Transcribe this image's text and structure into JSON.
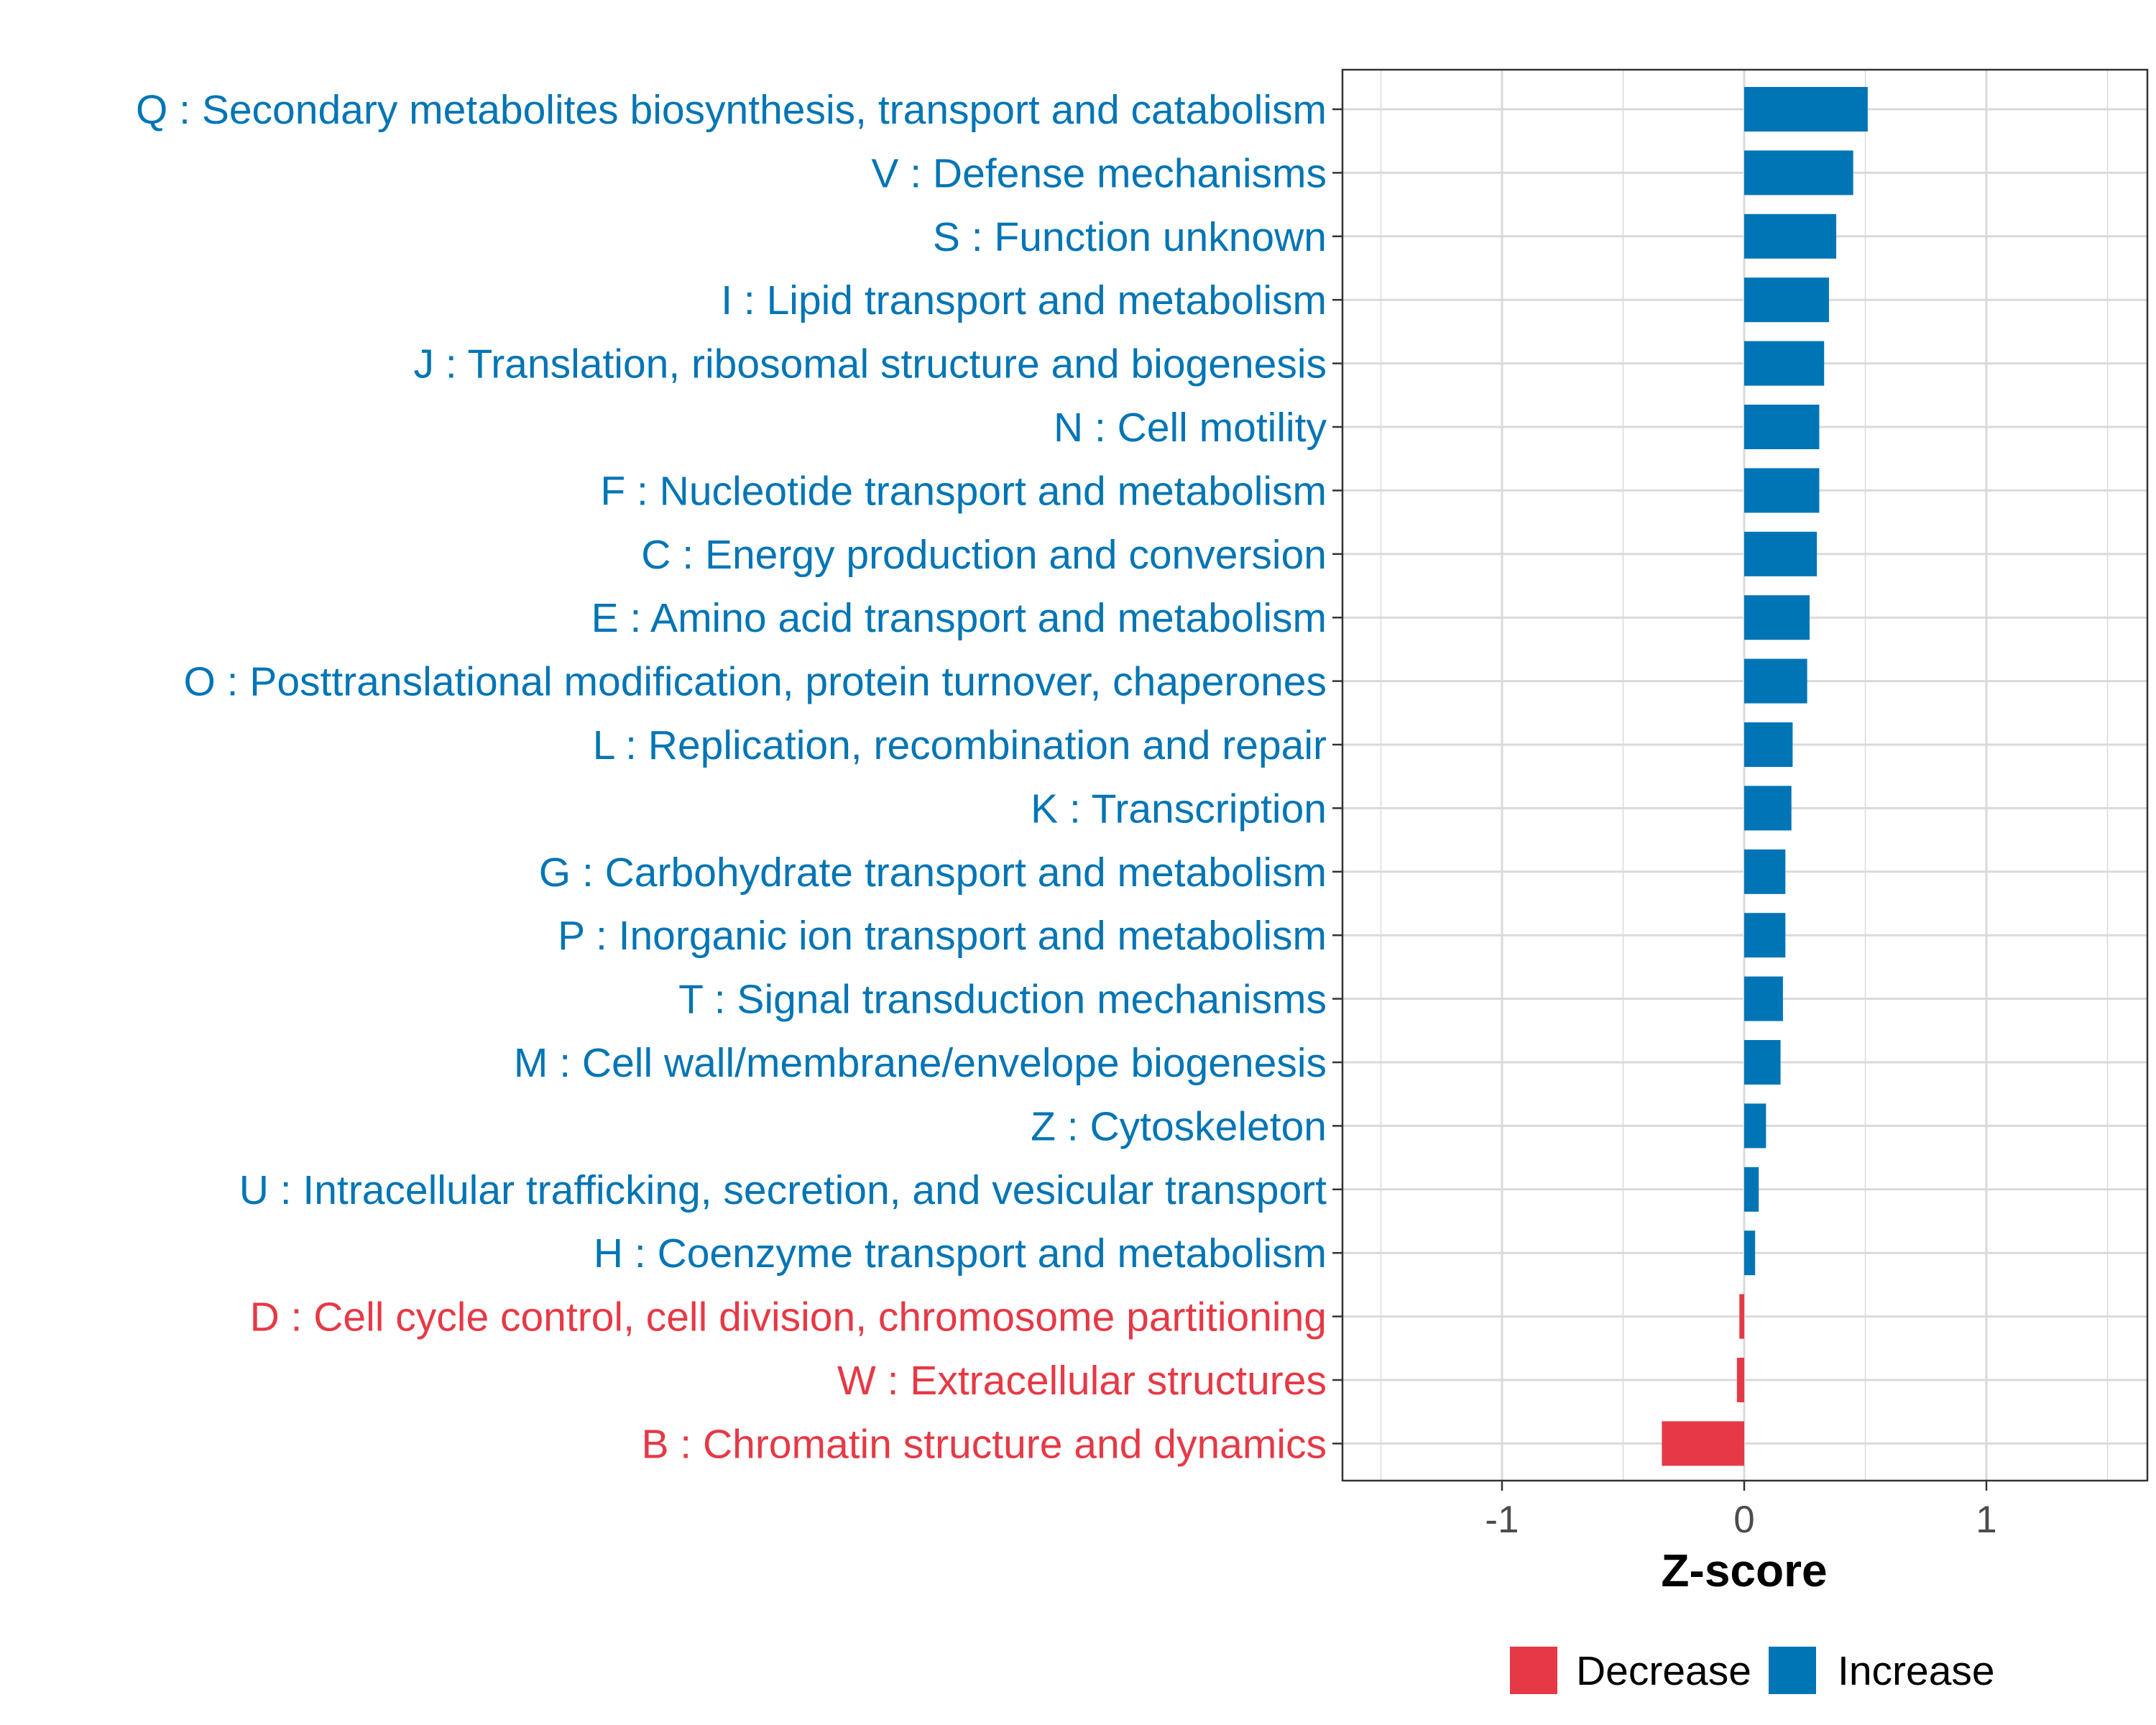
{
  "colors": {
    "increase": "#0075B5",
    "decrease": "#E63946",
    "grid": "#DADADA",
    "panel_border": "#333333",
    "tick_text": "#4D4D4D"
  },
  "chart_data": {
    "type": "bar",
    "orientation": "horizontal",
    "title": "",
    "xlabel": "Z-score",
    "ylabel": "",
    "xlim": [
      -1.66,
      1.66
    ],
    "xticks": [
      {
        "value": -1,
        "label": "-1"
      },
      {
        "value": 0,
        "label": "0"
      },
      {
        "value": 1,
        "label": "1"
      }
    ],
    "grid": true,
    "legend": {
      "position": "bottom",
      "entries": [
        {
          "key": "decrease",
          "label": "Decrease"
        },
        {
          "key": "increase",
          "label": "Increase"
        }
      ]
    },
    "categories": [
      {
        "label": "Q : Secondary metabolites biosynthesis, transport and catabolism",
        "value": 0.51,
        "direction": "increase"
      },
      {
        "label": "V : Defense mechanisms",
        "value": 0.45,
        "direction": "increase"
      },
      {
        "label": "S : Function unknown",
        "value": 0.38,
        "direction": "increase"
      },
      {
        "label": "I : Lipid transport and metabolism",
        "value": 0.35,
        "direction": "increase"
      },
      {
        "label": "J : Translation, ribosomal structure and biogenesis",
        "value": 0.33,
        "direction": "increase"
      },
      {
        "label": "N : Cell motility",
        "value": 0.31,
        "direction": "increase"
      },
      {
        "label": "F : Nucleotide transport and metabolism",
        "value": 0.31,
        "direction": "increase"
      },
      {
        "label": "C : Energy production and conversion",
        "value": 0.3,
        "direction": "increase"
      },
      {
        "label": "E : Amino acid transport and metabolism",
        "value": 0.27,
        "direction": "increase"
      },
      {
        "label": "O : Posttranslational modification, protein turnover, chaperones",
        "value": 0.26,
        "direction": "increase"
      },
      {
        "label": "L : Replication, recombination and repair",
        "value": 0.2,
        "direction": "increase"
      },
      {
        "label": "K : Transcription",
        "value": 0.195,
        "direction": "increase"
      },
      {
        "label": "G : Carbohydrate transport and metabolism",
        "value": 0.17,
        "direction": "increase"
      },
      {
        "label": "P : Inorganic ion transport and metabolism",
        "value": 0.17,
        "direction": "increase"
      },
      {
        "label": "T : Signal transduction mechanisms",
        "value": 0.16,
        "direction": "increase"
      },
      {
        "label": "M : Cell wall/membrane/envelope biogenesis",
        "value": 0.15,
        "direction": "increase"
      },
      {
        "label": "Z : Cytoskeleton",
        "value": 0.09,
        "direction": "increase"
      },
      {
        "label": "U : Intracellular trafficking, secretion, and vesicular transport",
        "value": 0.06,
        "direction": "increase"
      },
      {
        "label": "H : Coenzyme transport and metabolism",
        "value": 0.045,
        "direction": "increase"
      },
      {
        "label": "D : Cell cycle control, cell division, chromosome partitioning",
        "value": -0.02,
        "direction": "decrease"
      },
      {
        "label": "W : Extracellular structures",
        "value": -0.03,
        "direction": "decrease"
      },
      {
        "label": "B : Chromatin structure and dynamics",
        "value": -0.34,
        "direction": "decrease"
      }
    ]
  }
}
